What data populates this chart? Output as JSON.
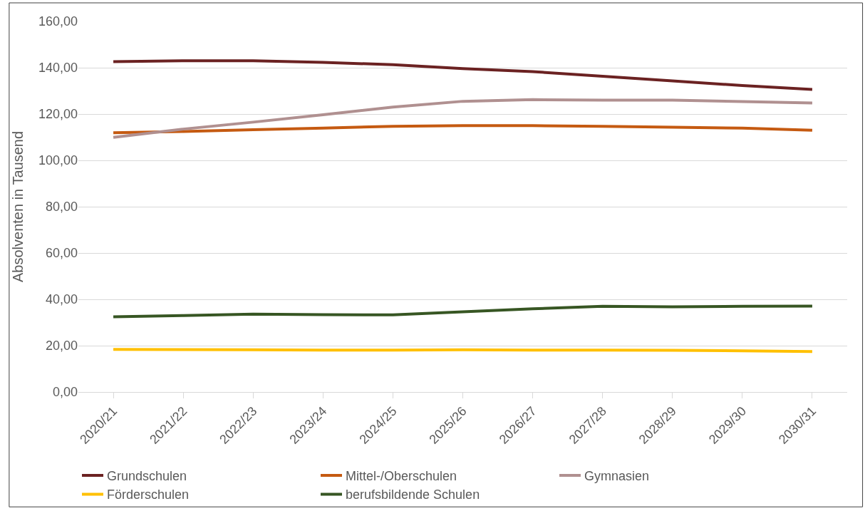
{
  "chart_data": {
    "type": "line",
    "ylabel": "Absolventen in Tausend",
    "categories": [
      "2020/21",
      "2021/22",
      "2022/23",
      "2023/24",
      "2024/25",
      "2025/26",
      "2026/27",
      "2027/28",
      "2028/29",
      "2029/30",
      "2030/31"
    ],
    "series": [
      {
        "name": "Grundschulen",
        "color": "#6b2222",
        "values": [
          142.6,
          143,
          143,
          142.3,
          141.3,
          139.6,
          138.3,
          136.3,
          134.3,
          132.3,
          130.6
        ]
      },
      {
        "name": "Mittel-/Oberschulen",
        "color": "#c55a11",
        "values": [
          111.9,
          112.5,
          113.2,
          113.9,
          114.7,
          115,
          115,
          114.7,
          114.3,
          113.9,
          113
        ]
      },
      {
        "name": "Gymnasien",
        "color": "#b09090",
        "values": [
          109.9,
          113.5,
          116.5,
          119.7,
          123,
          125.5,
          126.2,
          126,
          126,
          125.4,
          124.8
        ]
      },
      {
        "name": "Förderschulen",
        "color": "#ffc000",
        "values": [
          18.4,
          18.3,
          18.2,
          18.1,
          18.1,
          18.2,
          18.1,
          18.1,
          18,
          17.8,
          17.5
        ]
      },
      {
        "name": "berufsbildende Schulen",
        "color": "#375623",
        "values": [
          32.5,
          33,
          33.6,
          33.4,
          33.3,
          34.6,
          35.9,
          37,
          36.8,
          37,
          37.1
        ]
      }
    ],
    "ylim": [
      0,
      160
    ],
    "yticks": [
      {
        "value": 0,
        "label": "0,00"
      },
      {
        "value": 20,
        "label": "20,00"
      },
      {
        "value": 40,
        "label": "40,00"
      },
      {
        "value": 60,
        "label": "60,00"
      },
      {
        "value": 80,
        "label": "80,00"
      },
      {
        "value": 100,
        "label": "100,00"
      },
      {
        "value": 120,
        "label": "120,00"
      },
      {
        "value": 140,
        "label": "140,00"
      },
      {
        "value": 160,
        "label": "160,00"
      }
    ],
    "grid": "y",
    "legend": "bottom",
    "marker": "none",
    "line_style": "solid"
  }
}
